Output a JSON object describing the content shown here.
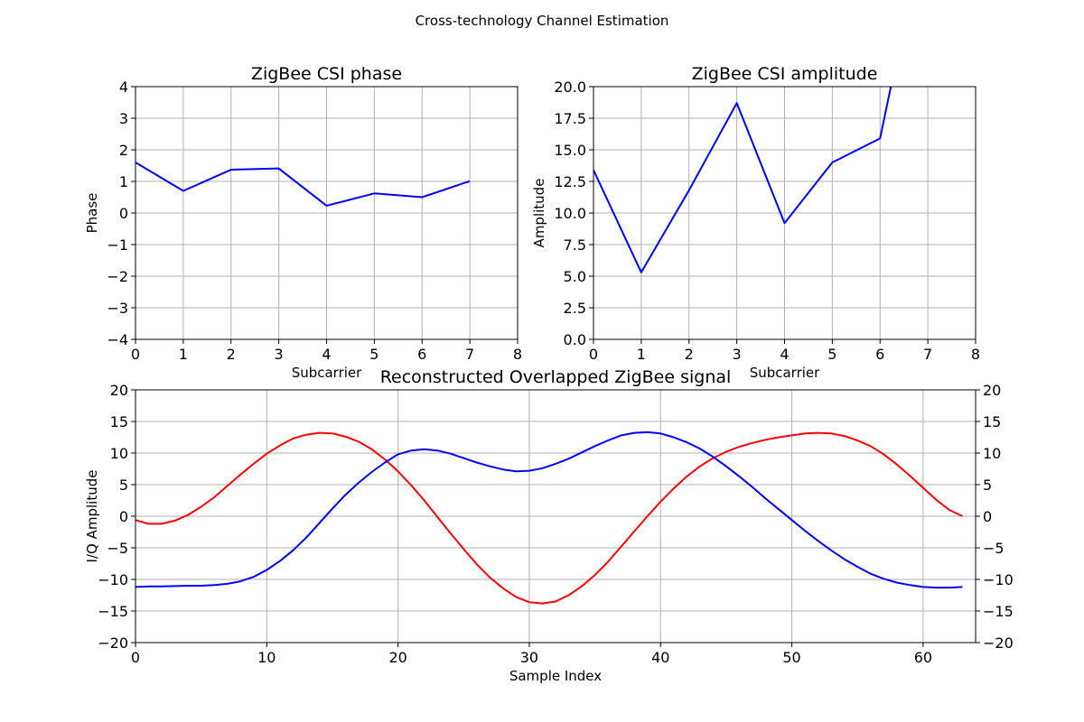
{
  "figure": {
    "suptitle": "Cross-technology Channel Estimation"
  },
  "chart_data": [
    {
      "id": "phase",
      "type": "line",
      "title": "ZigBee CSI phase",
      "xlabel": "Subcarrier",
      "ylabel": "Phase",
      "xlim": [
        0,
        8
      ],
      "ylim": [
        -4,
        4
      ],
      "xticks": [
        0,
        1,
        2,
        3,
        4,
        5,
        6,
        7,
        8
      ],
      "yticks": [
        -4,
        -3,
        -2,
        -1,
        0,
        1,
        2,
        3,
        4
      ],
      "grid": true,
      "series": [
        {
          "color": "#0000ff",
          "x": [
            0,
            1,
            2,
            3,
            4,
            5,
            6,
            7
          ],
          "y": [
            1.6,
            0.7,
            1.37,
            1.41,
            0.23,
            0.62,
            0.5,
            1.01
          ]
        }
      ]
    },
    {
      "id": "amplitude",
      "type": "line",
      "title": "ZigBee CSI amplitude",
      "xlabel": "Subcarrier",
      "ylabel": "Amplitude",
      "xlim": [
        0,
        8
      ],
      "ylim": [
        0,
        20
      ],
      "xticks": [
        0,
        1,
        2,
        3,
        4,
        5,
        6,
        7,
        8
      ],
      "yticks": [
        0.0,
        2.5,
        5.0,
        7.5,
        10.0,
        12.5,
        15.0,
        17.5,
        20.0
      ],
      "ytick_decimals": 1,
      "grid": true,
      "series": [
        {
          "color": "#0000ff",
          "x": [
            0,
            1,
            2,
            3,
            4,
            5,
            6,
            7
          ],
          "y": [
            13.4,
            5.3,
            11.8,
            18.7,
            9.2,
            14.0,
            15.9,
            34.0
          ]
        }
      ]
    },
    {
      "id": "signal",
      "type": "line",
      "title": "Reconstructed Overlapped ZigBee signal",
      "xlabel": "Sample Index",
      "ylabel": "I/Q Amplitude",
      "xlim": [
        0,
        64
      ],
      "ylim": [
        -20,
        20
      ],
      "xticks": [
        0,
        10,
        20,
        30,
        40,
        50,
        60
      ],
      "yticks": [
        -20,
        -15,
        -10,
        -5,
        0,
        5,
        10,
        15,
        20
      ],
      "right_axis_ticks": true,
      "grid": true,
      "series": [
        {
          "color": "#ff0000",
          "x": [
            0,
            1,
            2,
            3,
            4,
            5,
            6,
            7,
            8,
            9,
            10,
            11,
            12,
            13,
            14,
            15,
            16,
            17,
            18,
            19,
            20,
            21,
            22,
            23,
            24,
            25,
            26,
            27,
            28,
            29,
            30,
            31,
            32,
            33,
            34,
            35,
            36,
            37,
            38,
            39,
            40,
            41,
            42,
            43,
            44,
            45,
            46,
            47,
            48,
            49,
            50,
            51,
            52,
            53,
            54,
            55,
            56,
            57,
            58,
            59,
            60,
            61,
            62,
            63
          ],
          "y": [
            -0.6,
            -1.2,
            -1.2,
            -0.7,
            0.2,
            1.5,
            3.0,
            4.8,
            6.6,
            8.3,
            9.9,
            11.2,
            12.3,
            12.9,
            13.2,
            13.1,
            12.6,
            11.8,
            10.6,
            9.0,
            7.1,
            4.9,
            2.5,
            -0.1,
            -2.7,
            -5.2,
            -7.6,
            -9.7,
            -11.4,
            -12.8,
            -13.6,
            -13.8,
            -13.5,
            -12.5,
            -11.1,
            -9.3,
            -7.2,
            -4.8,
            -2.4,
            0.0,
            2.3,
            4.4,
            6.3,
            7.9,
            9.2,
            10.2,
            11.0,
            11.6,
            12.1,
            12.5,
            12.8,
            13.1,
            13.2,
            13.1,
            12.7,
            12.0,
            11.1,
            9.8,
            8.2,
            6.4,
            4.5,
            2.6,
            1.0,
            0.0
          ]
        },
        {
          "color": "#0000ff",
          "x": [
            0,
            1,
            2,
            3,
            4,
            5,
            6,
            7,
            8,
            9,
            10,
            11,
            12,
            13,
            14,
            15,
            16,
            17,
            18,
            19,
            20,
            21,
            22,
            23,
            24,
            25,
            26,
            27,
            28,
            29,
            30,
            31,
            32,
            33,
            34,
            35,
            36,
            37,
            38,
            39,
            40,
            41,
            42,
            43,
            44,
            45,
            46,
            47,
            48,
            49,
            50,
            51,
            52,
            53,
            54,
            55,
            56,
            57,
            58,
            59,
            60,
            61,
            62,
            63
          ],
          "y": [
            -11.2,
            -11.1,
            -11.1,
            -11.05,
            -11.0,
            -11.0,
            -10.9,
            -10.7,
            -10.3,
            -9.6,
            -8.5,
            -7.1,
            -5.4,
            -3.4,
            -1.1,
            1.2,
            3.4,
            5.3,
            7.0,
            8.5,
            9.8,
            10.4,
            10.6,
            10.4,
            9.9,
            9.2,
            8.5,
            7.9,
            7.4,
            7.1,
            7.2,
            7.6,
            8.3,
            9.1,
            10.1,
            11.1,
            12.0,
            12.8,
            13.2,
            13.3,
            13.1,
            12.5,
            11.7,
            10.7,
            9.4,
            7.9,
            6.3,
            4.6,
            2.8,
            1.1,
            -0.6,
            -2.3,
            -3.9,
            -5.4,
            -6.8,
            -8.0,
            -9.1,
            -9.9,
            -10.5,
            -10.9,
            -11.2,
            -11.3,
            -11.3,
            -11.2
          ]
        }
      ]
    }
  ]
}
